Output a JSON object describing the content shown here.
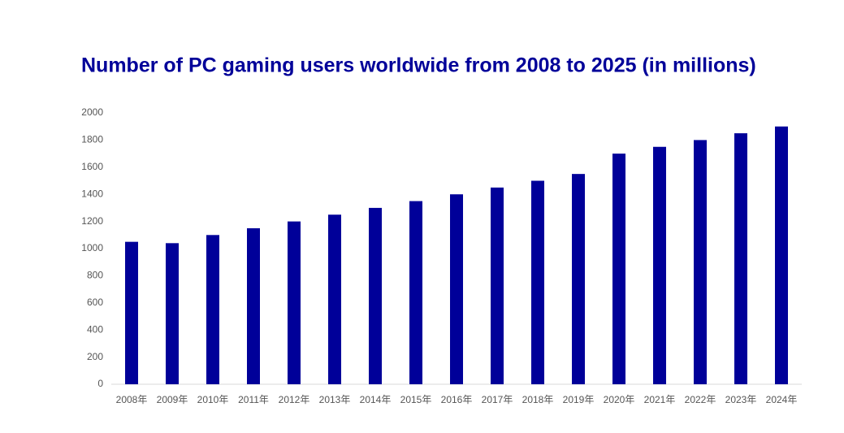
{
  "chart_data": {
    "type": "bar",
    "title": "Number of PC gaming users worldwide from 2008 to 2025  (in millions)",
    "categories": [
      "2008年",
      "2009年",
      "2010年",
      "2011年",
      "2012年",
      "2013年",
      "2014年",
      "2015年",
      "2016年",
      "2017年",
      "2018年",
      "2019年",
      "2020年",
      "2021年",
      "2022年",
      "2023年",
      "2024年"
    ],
    "values": [
      1050,
      1040,
      1100,
      1150,
      1200,
      1250,
      1300,
      1350,
      1400,
      1450,
      1500,
      1550,
      1700,
      1750,
      1800,
      1850,
      1900
    ],
    "color": "#000099",
    "ylim": [
      0,
      2000
    ],
    "yticks": [
      0,
      200,
      400,
      600,
      800,
      1000,
      1200,
      1400,
      1600,
      1800,
      2000
    ],
    "grid": false
  }
}
